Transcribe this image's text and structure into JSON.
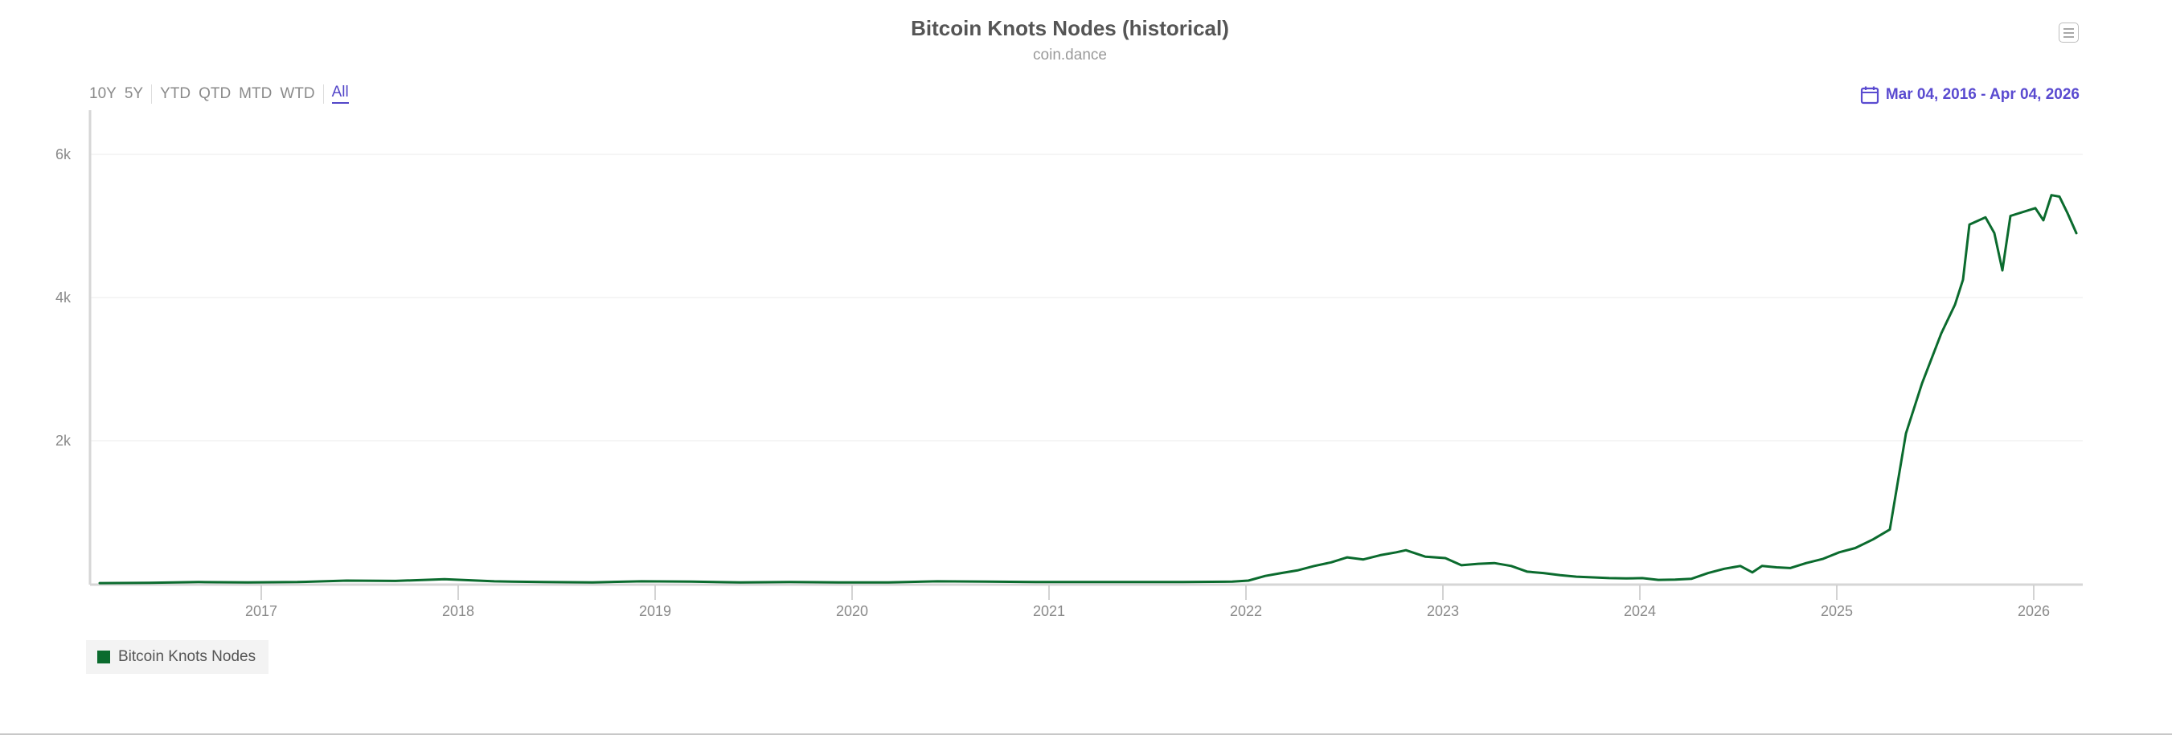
{
  "header": {
    "title": "Bitcoin Knots Nodes (historical)",
    "subtitle": "coin.dance",
    "menu_icon": "hamburger-menu-icon"
  },
  "range_selector": {
    "buttons": [
      "10Y",
      "5Y",
      "YTD",
      "QTD",
      "MTD",
      "WTD",
      "All"
    ],
    "active": "All"
  },
  "date_range": {
    "icon": "calendar-icon",
    "label": "Mar 04, 2016 - Apr 04, 2026"
  },
  "legend": {
    "items": [
      {
        "label": "Bitcoin Knots Nodes",
        "color": "#0b6b2e"
      }
    ]
  },
  "colors": {
    "series": "#0b6b2e",
    "accent": "#5a4bd0",
    "grid": "#ebebeb",
    "axis": "#d6d6d6"
  },
  "chart_data": {
    "type": "line",
    "title": "Bitcoin Knots Nodes (historical)",
    "subtitle": "coin.dance",
    "xlabel": "",
    "ylabel": "",
    "ylim": [
      0,
      6600
    ],
    "yticks": [
      {
        "value": 2000,
        "label": "2k"
      },
      {
        "value": 4000,
        "label": "4k"
      },
      {
        "value": 6000,
        "label": "6k"
      }
    ],
    "xticks": [
      "2017",
      "2018",
      "2019",
      "2020",
      "2021",
      "2022",
      "2023",
      "2024",
      "2025",
      "2026"
    ],
    "x_range": [
      "2016-03-04",
      "2026-04-04"
    ],
    "grid": true,
    "legend_position": "bottom-left",
    "series": [
      {
        "name": "Bitcoin Knots Nodes",
        "color": "#0b6b2e",
        "points": [
          [
            "2016-03",
            10
          ],
          [
            "2016-06",
            15
          ],
          [
            "2016-09",
            25
          ],
          [
            "2016-12",
            20
          ],
          [
            "2017-03",
            25
          ],
          [
            "2017-06",
            45
          ],
          [
            "2017-09",
            40
          ],
          [
            "2017-12",
            65
          ],
          [
            "2018-03",
            35
          ],
          [
            "2018-06",
            25
          ],
          [
            "2018-09",
            20
          ],
          [
            "2018-12",
            35
          ],
          [
            "2019-03",
            30
          ],
          [
            "2019-06",
            20
          ],
          [
            "2019-09",
            25
          ],
          [
            "2019-12",
            20
          ],
          [
            "2020-03",
            20
          ],
          [
            "2020-06",
            35
          ],
          [
            "2020-09",
            30
          ],
          [
            "2020-12",
            25
          ],
          [
            "2021-03",
            25
          ],
          [
            "2021-06",
            25
          ],
          [
            "2021-09",
            25
          ],
          [
            "2021-12",
            30
          ],
          [
            "2022-01",
            45
          ],
          [
            "2022-02",
            110
          ],
          [
            "2022-03",
            150
          ],
          [
            "2022-04",
            190
          ],
          [
            "2022-05",
            250
          ],
          [
            "2022-06",
            300
          ],
          [
            "2022-07",
            370
          ],
          [
            "2022-08",
            340
          ],
          [
            "2022-09",
            400
          ],
          [
            "2022-10",
            440
          ],
          [
            "2022-11",
            470
          ],
          [
            "2022-12",
            380
          ],
          [
            "2023-01",
            360
          ],
          [
            "2023-02",
            260
          ],
          [
            "2023-03",
            280
          ],
          [
            "2023-04",
            290
          ],
          [
            "2023-05",
            250
          ],
          [
            "2023-06",
            170
          ],
          [
            "2023-07",
            150
          ],
          [
            "2023-08",
            120
          ],
          [
            "2023-09",
            100
          ],
          [
            "2023-10",
            90
          ],
          [
            "2023-11",
            80
          ],
          [
            "2023-12",
            75
          ],
          [
            "2024-01",
            80
          ],
          [
            "2024-02",
            55
          ],
          [
            "2024-03",
            60
          ],
          [
            "2024-04",
            70
          ],
          [
            "2024-05",
            150
          ],
          [
            "2024-06",
            210
          ],
          [
            "2024-07",
            250
          ],
          [
            "2024-08",
            160
          ],
          [
            "2024-09",
            250
          ],
          [
            "2024-10",
            230
          ],
          [
            "2024-11",
            220
          ],
          [
            "2024-12",
            290
          ],
          [
            "2025-01",
            350
          ],
          [
            "2025-02",
            440
          ],
          [
            "2025-03",
            500
          ],
          [
            "2025-04",
            620
          ],
          [
            "2025-04",
            760
          ],
          [
            "2025-05",
            2100
          ],
          [
            "2025-06",
            2800
          ],
          [
            "2025-07",
            3500
          ],
          [
            "2025-08",
            3900
          ],
          [
            "2025-09",
            4250
          ],
          [
            "2025-09",
            5020
          ],
          [
            "2025-10",
            5120
          ],
          [
            "2025-11",
            4900
          ],
          [
            "2025-11",
            4380
          ],
          [
            "2025-12",
            5140
          ],
          [
            "2026-01",
            5250
          ],
          [
            "2026-02",
            5080
          ],
          [
            "2026-02",
            5430
          ],
          [
            "2026-03",
            5410
          ],
          [
            "2026-03",
            5180
          ],
          [
            "2026-04",
            4900
          ]
        ],
        "xpx": [
          124,
          186,
          247,
          308,
          370,
          431,
          492,
          553,
          615,
          676,
          737,
          798,
          860,
          921,
          982,
          1043,
          1105,
          1166,
          1227,
          1288,
          1350,
          1411,
          1472,
          1533,
          1553,
          1574,
          1594,
          1615,
          1635,
          1656,
          1676,
          1696,
          1717,
          1737,
          1749,
          1773,
          1798,
          1818,
          1839,
          1859,
          1880,
          1900,
          1920,
          1941,
          1961,
          1982,
          2002,
          2023,
          2043,
          2063,
          2084,
          2104,
          2125,
          2145,
          2165,
          2180,
          2192,
          2210,
          2227,
          2247,
          2268,
          2288,
          2308,
          2330,
          2351,
          2371,
          2391,
          2415,
          2432,
          2442,
          2450,
          2470,
          2481,
          2491,
          2501,
          2532,
          2542,
          2552,
          2562,
          2572,
          2583
        ]
      }
    ]
  }
}
